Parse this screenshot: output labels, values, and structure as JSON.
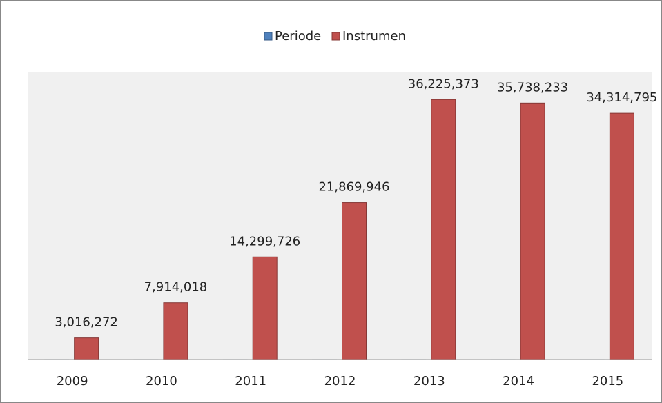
{
  "chart_data": {
    "type": "bar",
    "categories": [
      "2009",
      "2010",
      "2011",
      "2012",
      "2013",
      "2014",
      "2015"
    ],
    "series": [
      {
        "name": "Periode",
        "color": "#4f81bd",
        "values": [
          2009,
          2010,
          2011,
          2012,
          2013,
          2014,
          2015
        ]
      },
      {
        "name": "Instrumen",
        "color": "#c0504d",
        "values": [
          3016272,
          7914018,
          14299726,
          21869946,
          36225373,
          35738233,
          34314795
        ],
        "value_labels": [
          "3,016,272",
          "7,914,018",
          "14,299,726",
          "21,869,946",
          "36,225,373",
          "35,738,233",
          "34,314,795"
        ]
      }
    ],
    "ylim": [
      0,
      40000000
    ],
    "legend": "top"
  }
}
